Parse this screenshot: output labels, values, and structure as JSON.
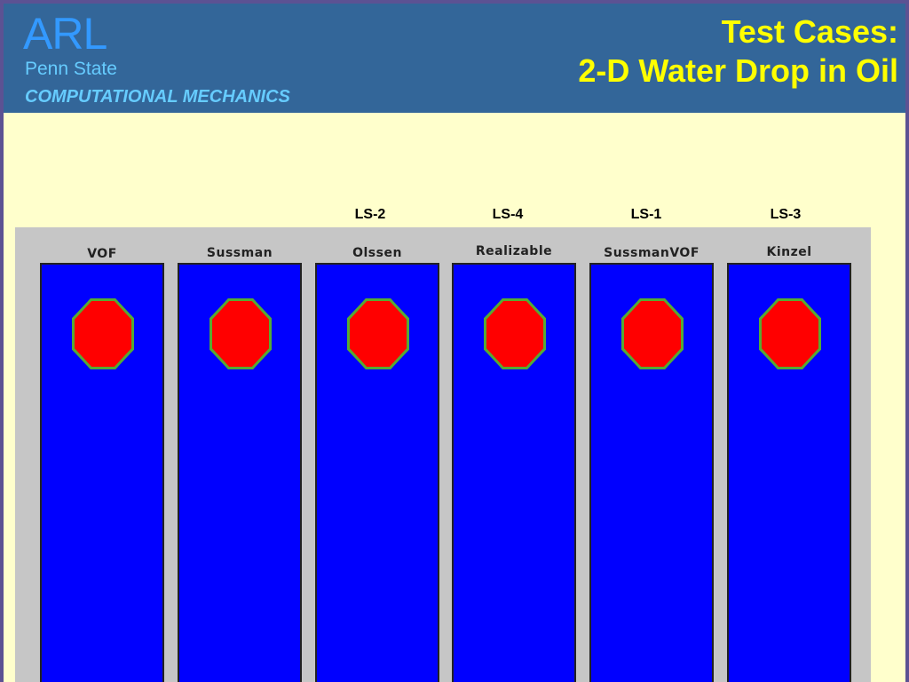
{
  "header": {
    "logo": "ARL",
    "organization": "Penn State",
    "department": "COMPUTATIONAL MECHANICS",
    "title_line1": "Test Cases:",
    "title_line2": "2-D Water Drop in Oil"
  },
  "case_labels": [
    {
      "label": "LS-2",
      "panel": "Olssen"
    },
    {
      "label": "LS-4",
      "panel": "Realizable"
    },
    {
      "label": "LS-1",
      "panel": "SussmanVOF"
    },
    {
      "label": "LS-3",
      "panel": "Kinzel"
    }
  ],
  "panels": [
    {
      "title": "VOF"
    },
    {
      "title": "Sussman"
    },
    {
      "title": "Olssen"
    },
    {
      "title": "Realizable"
    },
    {
      "title": "SussmanVOF"
    },
    {
      "title": "Kinzel"
    }
  ],
  "colors": {
    "outer_border": "#5c5293",
    "slide_background": "#ffffcc",
    "header_background": "#336699",
    "logo": "#3399ff",
    "subtitle": "#66ccff",
    "title": "#ffff00",
    "figure_background": "#c6c6c6",
    "oil": "#0000ff",
    "water_drop": "#ff0000",
    "interface": "#55aa33"
  }
}
